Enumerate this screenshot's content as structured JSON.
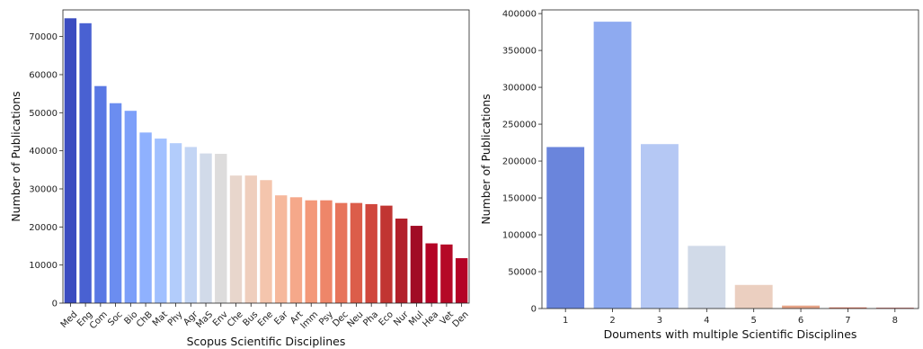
{
  "chart_data": [
    {
      "type": "bar",
      "xlabel": "Scopus Scientific Disciplines",
      "ylabel": "Number of Publications",
      "ylim": [
        0,
        77000
      ],
      "yticks": [
        0,
        10000,
        20000,
        30000,
        40000,
        50000,
        60000,
        70000
      ],
      "grid": false,
      "palette": "coolwarm",
      "categories": [
        "Med",
        "Eng",
        "Com",
        "Soc",
        "Bio",
        "ChB",
        "Mat",
        "Phy",
        "Agr",
        "MaS",
        "Env",
        "Che",
        "Bus",
        "Ene",
        "Ear",
        "Art",
        "Imm",
        "Psy",
        "Dec",
        "Neu",
        "Pha",
        "Eco",
        "Nur",
        "Mul",
        "Hea",
        "Vet",
        "Den"
      ],
      "values": [
        74800,
        73500,
        57000,
        52500,
        50500,
        44800,
        43200,
        42000,
        41000,
        39300,
        39200,
        33500,
        33500,
        32300,
        28300,
        27800,
        27000,
        27000,
        26300,
        26300,
        26000,
        25600,
        22200,
        20300,
        15700,
        15400,
        11800
      ],
      "colors": [
        "#3b4cc0",
        "#4961d2",
        "#5a78e4",
        "#6b8df0",
        "#7d9ff9",
        "#8fb1fe",
        "#a1c0ff",
        "#b2ccfb",
        "#c3d5f4",
        "#d1dae9",
        "#dddcdc",
        "#e8d6cc",
        "#efcebd",
        "#f4c5ad",
        "#f6b89c",
        "#f5a88a",
        "#f39879",
        "#ee8669",
        "#e7745b",
        "#dc5d4a",
        "#d0473d",
        "#c13532",
        "#b2212b",
        "#a10c25",
        "#b40426",
        "#b50927",
        "#b40426"
      ]
    },
    {
      "type": "bar",
      "xlabel": "Douments with multiple Scientific Disciplines",
      "ylabel": "Number of Publications",
      "ylim": [
        0,
        405000
      ],
      "yticks": [
        0,
        50000,
        100000,
        150000,
        200000,
        250000,
        300000,
        350000,
        400000
      ],
      "grid": false,
      "palette": "coolwarm",
      "categories": [
        "1",
        "2",
        "3",
        "4",
        "5",
        "6",
        "7",
        "8"
      ],
      "values": [
        219000,
        389000,
        223000,
        85000,
        32000,
        4000,
        1500,
        1000
      ],
      "colors": [
        "#6a85dc",
        "#8eaaf0",
        "#b5c8f4",
        "#d1dae8",
        "#ebcfc0",
        "#e6a488",
        "#d9735b",
        "#bf4a47"
      ]
    }
  ]
}
